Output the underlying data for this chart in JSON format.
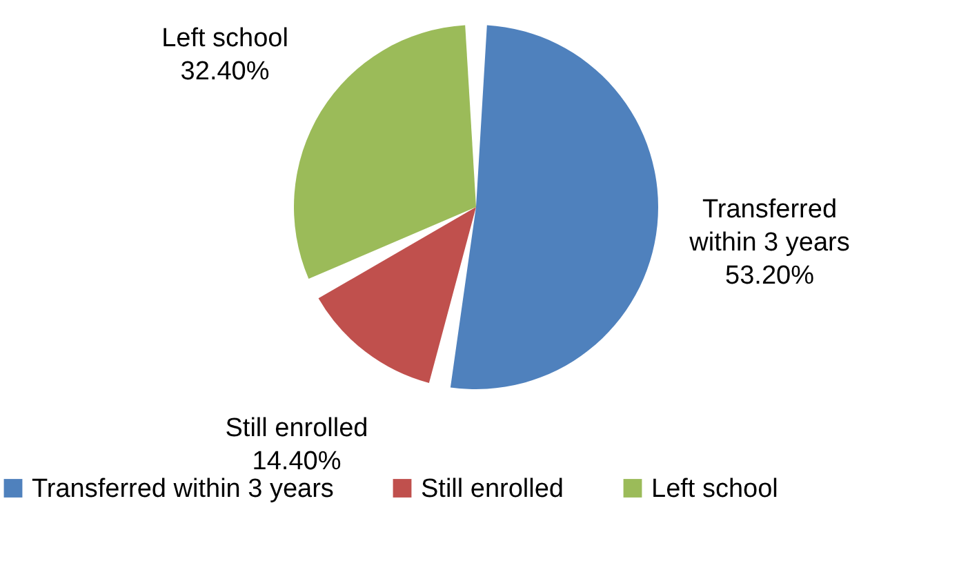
{
  "chart_data": {
    "type": "pie",
    "categories": [
      "Transferred within 3 years",
      "Still enrolled",
      "Left school"
    ],
    "values": [
      53.2,
      14.4,
      32.4
    ],
    "colors": [
      "#4f81bd",
      "#c0504d",
      "#9bbb59"
    ],
    "value_labels": [
      "53.20%",
      "14.40%",
      "32.40%"
    ],
    "legend": "bottom"
  }
}
